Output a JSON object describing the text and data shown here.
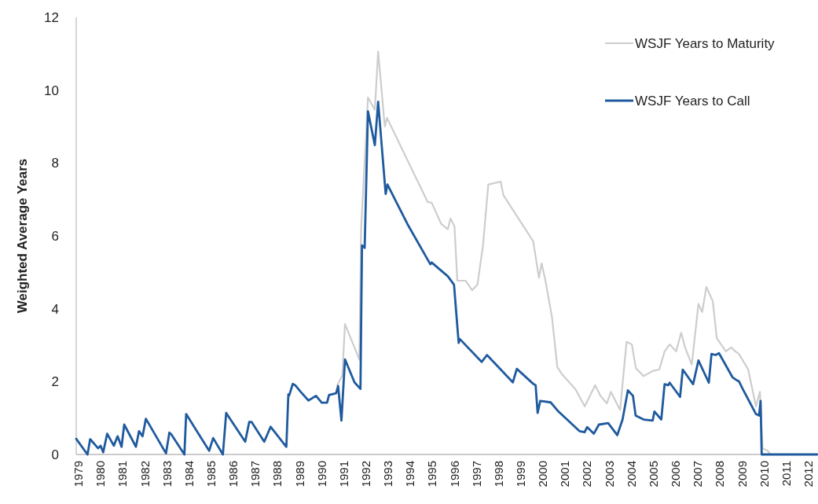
{
  "chart_data": {
    "type": "line",
    "ylabel": "Weighted Average Years",
    "xlim": [
      1978.9,
      2012.4
    ],
    "ylim": [
      0,
      12
    ],
    "xticks": [
      1979,
      1980,
      1981,
      1982,
      1983,
      1984,
      1985,
      1986,
      1987,
      1988,
      1989,
      1990,
      1991,
      1992,
      1993,
      1994,
      1995,
      1996,
      1997,
      1998,
      1999,
      2000,
      2001,
      2002,
      2003,
      2004,
      2005,
      2006,
      2007,
      2008,
      2009,
      2010,
      2011,
      2012
    ],
    "yticks": [
      0,
      2,
      4,
      6,
      8,
      10,
      12
    ],
    "grid": false,
    "legend": "top right",
    "marker": "none",
    "line_style": "solid",
    "series": [
      {
        "name": "WSJF Years to Maturity",
        "color": "#cdcdcd",
        "x": [
          1990.7,
          1990.93,
          1991.05,
          1991.6,
          1991.7,
          1991.78,
          1992.09,
          1992.4,
          1992.55,
          1992.85,
          1992.95,
          1994.79,
          1994.97,
          1995.4,
          1995.7,
          1995.82,
          1996.0,
          1996.13,
          1996.5,
          1996.8,
          1997.04,
          1997.29,
          1997.53,
          1998.09,
          1998.21,
          1999.56,
          1999.82,
          1999.94,
          2000.11,
          2000.41,
          2000.65,
          2000.88,
          2001.47,
          2001.89,
          2002.36,
          2002.6,
          2002.89,
          2003.07,
          2003.49,
          2003.78,
          2004.02,
          2004.2,
          2004.55,
          2004.96,
          2005.26,
          2005.5,
          2005.73,
          2006.02,
          2006.25,
          2006.44,
          2006.73,
          2007.03,
          2007.2,
          2007.39,
          2007.68,
          2007.86,
          2008.27,
          2008.51,
          2008.7,
          2008.86,
          2009.28,
          2009.63,
          2009.81,
          2009.93,
          2010.17,
          2010.28,
          2012.4
        ],
        "values": [
          1.9,
          2.17,
          3.58,
          2.76,
          2.6,
          6.19,
          9.8,
          9.46,
          11.06,
          9.0,
          9.24,
          6.93,
          6.91,
          6.33,
          6.18,
          6.48,
          6.26,
          4.77,
          4.77,
          4.51,
          4.66,
          5.74,
          7.41,
          7.49,
          7.12,
          5.85,
          4.85,
          5.25,
          4.78,
          3.77,
          2.4,
          2.19,
          1.79,
          1.32,
          1.9,
          1.61,
          1.4,
          1.72,
          1.22,
          3.09,
          3.02,
          2.37,
          2.15,
          2.29,
          2.33,
          2.83,
          3.02,
          2.83,
          3.34,
          2.91,
          2.47,
          4.13,
          3.91,
          4.6,
          4.2,
          3.19,
          2.83,
          2.94,
          2.83,
          2.76,
          2.33,
          1.32,
          1.72,
          0.17,
          0.1,
          0,
          0
        ]
      },
      {
        "name": "WSJF Years to Call",
        "color": "#1f5a9e",
        "x": [
          1978.9,
          1979.41,
          1979.53,
          1979.89,
          1980.0,
          1980.12,
          1980.3,
          1980.6,
          1980.77,
          1980.95,
          1981.07,
          1981.6,
          1981.74,
          1981.9,
          1982.05,
          1982.96,
          1983.11,
          1983.2,
          1983.79,
          1983.87,
          1984.91,
          1985.09,
          1985.53,
          1985.68,
          1986.54,
          1986.72,
          1986.83,
          1987.4,
          1987.69,
          1988.4,
          1988.49,
          1988.53,
          1988.69,
          1988.8,
          1989.05,
          1989.4,
          1989.74,
          1990.0,
          1990.24,
          1990.33,
          1990.65,
          1990.74,
          1990.89,
          1991.05,
          1991.48,
          1991.75,
          1991.82,
          1991.94,
          1992.09,
          1992.4,
          1992.55,
          1992.89,
          1992.97,
          1993.87,
          1994.91,
          1994.97,
          1995.7,
          1995.98,
          1996.19,
          1996.24,
          1997.23,
          1997.47,
          1998.64,
          1998.82,
          1999.56,
          1999.67,
          1999.76,
          1999.88,
          2000.35,
          2000.7,
          2001.65,
          2001.88,
          2002.0,
          2002.3,
          2002.53,
          2002.95,
          2003.36,
          2003.6,
          2003.84,
          2004.07,
          2004.19,
          2004.55,
          2004.96,
          2005.04,
          2005.35,
          2005.5,
          2005.67,
          2005.73,
          2006.2,
          2006.32,
          2006.79,
          2007.03,
          2007.5,
          2007.62,
          2007.8,
          2007.96,
          2008.57,
          2008.75,
          2008.86,
          2009.04,
          2009.63,
          2009.77,
          2009.84,
          2009.89,
          2012.4
        ],
        "values": [
          0.43,
          0,
          0.42,
          0.17,
          0.24,
          0.06,
          0.57,
          0.24,
          0.5,
          0.21,
          0.82,
          0.21,
          0.64,
          0.5,
          0.98,
          0.03,
          0.6,
          0.55,
          0,
          1.11,
          0.1,
          0.45,
          0,
          1.14,
          0.35,
          0.89,
          0.89,
          0.35,
          0.76,
          0.21,
          1.65,
          1.62,
          1.94,
          1.9,
          1.72,
          1.48,
          1.61,
          1.42,
          1.42,
          1.63,
          1.68,
          1.88,
          0.93,
          2.61,
          1.98,
          1.8,
          5.74,
          5.67,
          9.42,
          8.49,
          9.68,
          7.15,
          7.41,
          6.33,
          5.22,
          5.27,
          4.89,
          4.66,
          3.06,
          3.17,
          2.54,
          2.73,
          1.98,
          2.35,
          1.94,
          1.9,
          1.14,
          1.47,
          1.43,
          1.18,
          0.64,
          0.61,
          0.75,
          0.57,
          0.82,
          0.86,
          0.53,
          0.96,
          1.76,
          1.61,
          1.07,
          0.96,
          0.93,
          1.18,
          0.96,
          1.93,
          1.9,
          1.97,
          1.58,
          2.33,
          1.93,
          2.58,
          1.97,
          2.76,
          2.73,
          2.78,
          2.12,
          2.04,
          2.01,
          1.79,
          1.11,
          1.07,
          1.47,
          0,
          0
        ]
      }
    ]
  }
}
